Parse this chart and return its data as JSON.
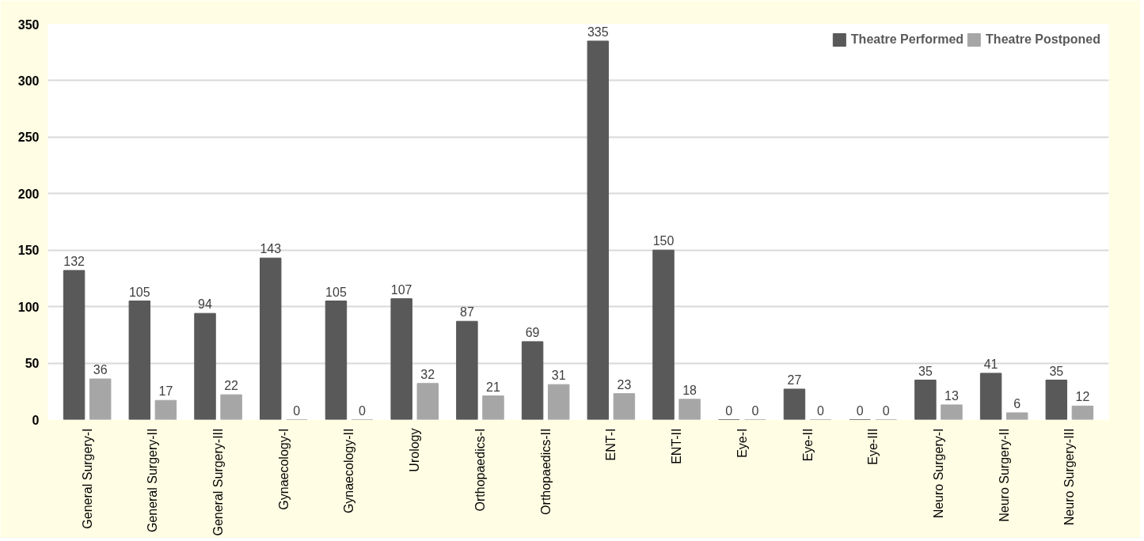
{
  "chart_data": {
    "type": "bar",
    "categories": [
      "General Surgery-I",
      "General Surgery-II",
      "General Surgery-III",
      "Gynaecology-I",
      "Gynaecology-II",
      "Urology",
      "Orthopaedics-I",
      "Orthopaedics-II",
      "ENT-I",
      "ENT-II",
      "Eye-I",
      "Eye-II",
      "Eye-III",
      "Neuro Surgery-I",
      "Neuro Surgery-II",
      "Neuro Surgery-III"
    ],
    "series": [
      {
        "name": "Theatre Performed",
        "color": "#595959",
        "values": [
          132,
          105,
          94,
          143,
          105,
          107,
          87,
          69,
          335,
          150,
          0,
          27,
          0,
          35,
          41,
          35
        ]
      },
      {
        "name": "Theatre Postponed",
        "color": "#a6a6a6",
        "values": [
          36,
          17,
          22,
          0,
          0,
          32,
          21,
          31,
          23,
          18,
          0,
          0,
          0,
          13,
          6,
          12
        ]
      }
    ],
    "ylim": [
      0,
      350
    ],
    "yticks": [
      0,
      50,
      100,
      150,
      200,
      250,
      300,
      350
    ],
    "grid": "y",
    "legend": "top right",
    "data_labels": true
  }
}
